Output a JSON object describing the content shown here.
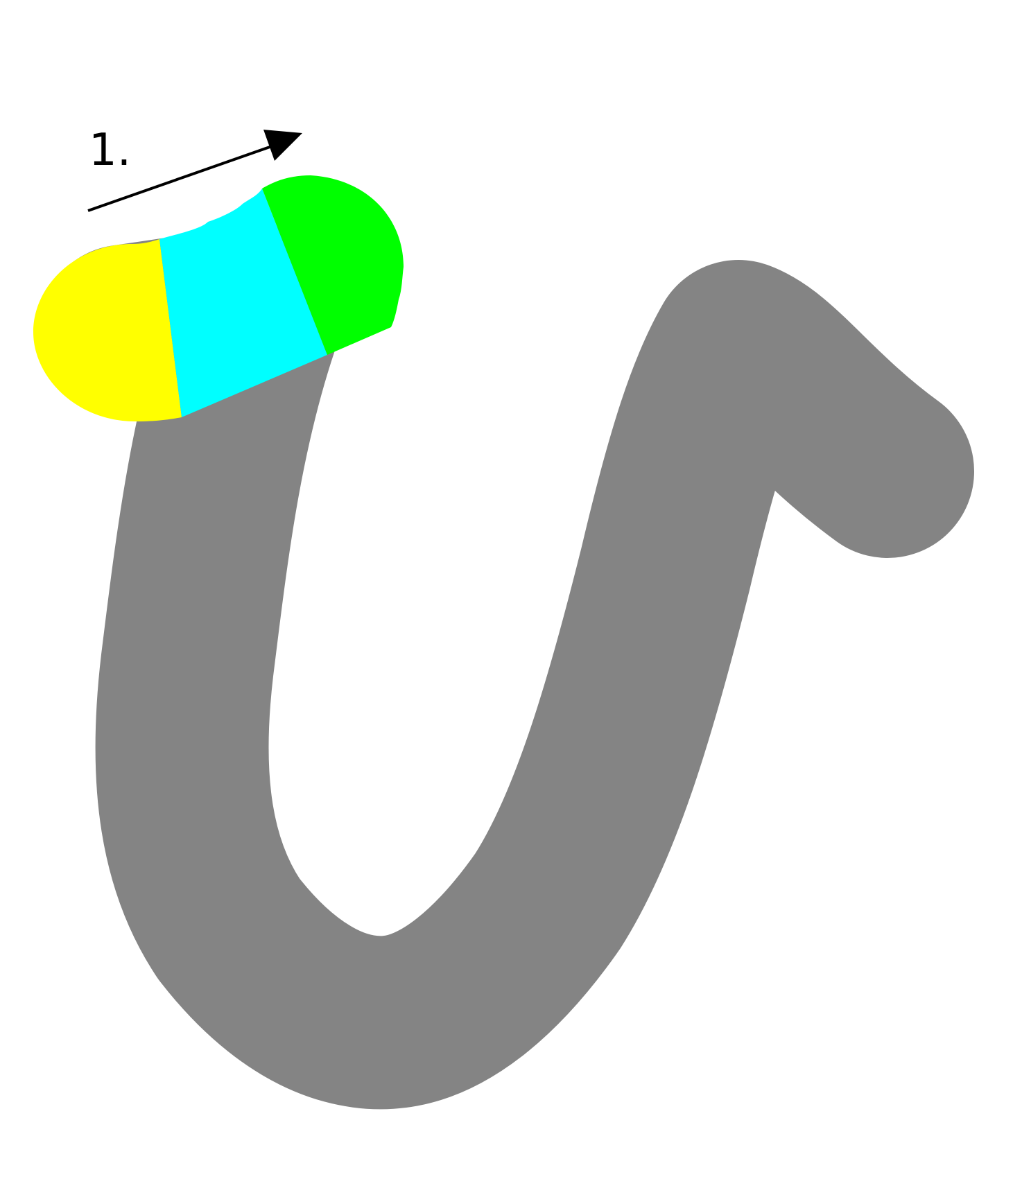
{
  "diagram": {
    "step_number": "1.",
    "stroke_color": "#848484",
    "segment_colors": [
      "#ffff00",
      "#00ffff",
      "#00ff00"
    ],
    "arrow_color": "#000000",
    "background_color": "#ffffff"
  }
}
